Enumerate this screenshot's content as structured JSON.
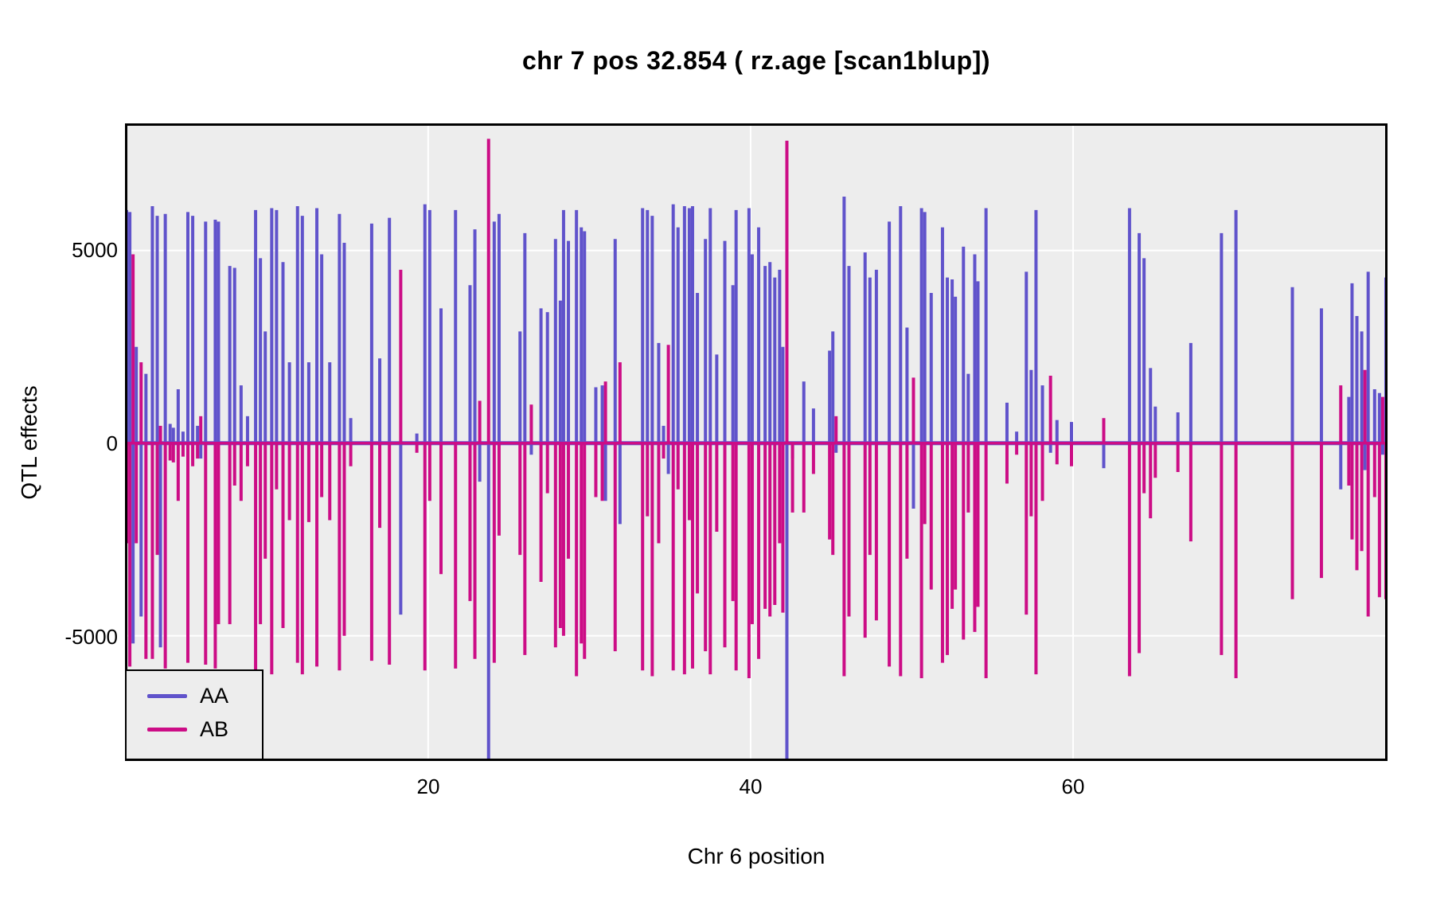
{
  "title": "chr 7 pos 32.854 ( rz.age  [scan1blup])",
  "x_axis": {
    "label": "Chr 6 position",
    "ticks": [
      "20",
      "40",
      "60"
    ]
  },
  "y_axis": {
    "label": "QTL effects",
    "ticks": [
      "5000",
      "0",
      "-5000"
    ]
  },
  "legend": {
    "items": [
      {
        "label": "AA",
        "color": "#6053CB"
      },
      {
        "label": "AB",
        "color": "#CC0D86"
      }
    ]
  },
  "colors": {
    "aa": "#6053CB",
    "ab": "#CC0D86",
    "plot_bg": "#EDEDED",
    "grid": "#FFFFFF",
    "border": "#000000"
  },
  "chart_data": {
    "type": "line",
    "title": "chr 7 pos 32.854 ( rz.age  [scan1blup])",
    "xlabel": "Chr 6 position",
    "ylabel": "QTL effects",
    "xlim": [
      1.2,
      79.5
    ],
    "ylim": [
      -8250,
      8300
    ],
    "x_ticks": [
      20,
      40,
      60
    ],
    "y_ticks": [
      5000,
      0,
      -5000
    ],
    "grid": true,
    "legend_position": "bottom-left",
    "series_names": [
      "AA",
      "AB"
    ],
    "baseline": 0,
    "points_format": [
      "position_cM",
      "AA_effect",
      "AB_effect"
    ],
    "points": [
      [
        1.3,
        6050,
        -2600
      ],
      [
        1.5,
        6000,
        -5800
      ],
      [
        1.7,
        -5200,
        4900
      ],
      [
        1.9,
        2500,
        -2600
      ],
      [
        2.2,
        -4500,
        2100
      ],
      [
        2.5,
        1800,
        -5600
      ],
      [
        2.9,
        6150,
        -5600
      ],
      [
        3.2,
        5900,
        -2900
      ],
      [
        3.4,
        -5300,
        450
      ],
      [
        3.7,
        5950,
        -5850
      ],
      [
        4.0,
        500,
        -450
      ],
      [
        4.2,
        400,
        -500
      ],
      [
        4.5,
        1400,
        -1500
      ],
      [
        4.8,
        300,
        -350
      ],
      [
        5.1,
        6000,
        -5700
      ],
      [
        5.4,
        5900,
        -600
      ],
      [
        5.7,
        450,
        -400
      ],
      [
        5.9,
        -400,
        700
      ],
      [
        6.2,
        5750,
        -5750
      ],
      [
        6.8,
        5800,
        -5850
      ],
      [
        7.0,
        5750,
        -4700
      ],
      [
        7.7,
        4600,
        -4700
      ],
      [
        8.0,
        4550,
        -1100
      ],
      [
        8.4,
        1500,
        -1500
      ],
      [
        8.8,
        700,
        -600
      ],
      [
        9.3,
        6050,
        -5900
      ],
      [
        9.6,
        4800,
        -4700
      ],
      [
        9.9,
        2900,
        -3000
      ],
      [
        10.3,
        6100,
        -6000
      ],
      [
        10.6,
        6050,
        -1200
      ],
      [
        11.0,
        4700,
        -4800
      ],
      [
        11.4,
        2100,
        -2000
      ],
      [
        11.9,
        6150,
        -5700
      ],
      [
        12.2,
        5900,
        -6000
      ],
      [
        12.6,
        2100,
        -2050
      ],
      [
        13.1,
        6100,
        -5800
      ],
      [
        13.4,
        4900,
        -1400
      ],
      [
        13.9,
        2100,
        -2000
      ],
      [
        14.5,
        5950,
        -5900
      ],
      [
        14.8,
        5200,
        -5000
      ],
      [
        15.2,
        650,
        -600
      ],
      [
        16.5,
        5700,
        -5650
      ],
      [
        17.0,
        2200,
        -2200
      ],
      [
        17.6,
        5850,
        -5750
      ],
      [
        18.3,
        -4450,
        4500
      ],
      [
        19.3,
        250,
        -250
      ],
      [
        19.8,
        6200,
        -5900
      ],
      [
        20.1,
        6050,
        -1500
      ],
      [
        20.8,
        3500,
        -3400
      ],
      [
        21.7,
        6050,
        -5850
      ],
      [
        22.6,
        4100,
        -4100
      ],
      [
        22.9,
        5550,
        -5600
      ],
      [
        23.2,
        -1000,
        1100
      ],
      [
        23.75,
        -8200,
        7900
      ],
      [
        24.1,
        5750,
        -5700
      ],
      [
        24.4,
        5950,
        -2400
      ],
      [
        25.7,
        2900,
        -2900
      ],
      [
        26.0,
        5450,
        -5500
      ],
      [
        26.4,
        -300,
        1000
      ],
      [
        27.0,
        3500,
        -3600
      ],
      [
        27.4,
        3400,
        -1300
      ],
      [
        27.9,
        5300,
        -5300
      ],
      [
        28.2,
        3700,
        -4800
      ],
      [
        28.4,
        6050,
        -5000
      ],
      [
        28.7,
        5250,
        -3000
      ],
      [
        29.2,
        6050,
        -6050
      ],
      [
        29.5,
        5600,
        -5200
      ],
      [
        29.7,
        5500,
        -5600
      ],
      [
        30.4,
        1450,
        -1400
      ],
      [
        30.8,
        1500,
        -1500
      ],
      [
        31.0,
        -1500,
        1600
      ],
      [
        31.6,
        5300,
        -5400
      ],
      [
        31.9,
        -2100,
        2100
      ],
      [
        33.3,
        6100,
        -5900
      ],
      [
        33.6,
        6050,
        -1900
      ],
      [
        33.9,
        5900,
        -6050
      ],
      [
        34.3,
        2600,
        -2600
      ],
      [
        34.6,
        450,
        -400
      ],
      [
        34.9,
        -800,
        2550
      ],
      [
        35.2,
        6200,
        -5900
      ],
      [
        35.5,
        5600,
        -1200
      ],
      [
        35.9,
        6150,
        -6000
      ],
      [
        36.2,
        6100,
        -2000
      ],
      [
        36.4,
        6150,
        -5850
      ],
      [
        36.7,
        3900,
        -3900
      ],
      [
        37.2,
        5300,
        -5400
      ],
      [
        37.5,
        6100,
        -6000
      ],
      [
        37.9,
        2300,
        -2300
      ],
      [
        38.4,
        5250,
        -5300
      ],
      [
        38.9,
        4100,
        -4100
      ],
      [
        39.1,
        6050,
        -5900
      ],
      [
        39.9,
        6100,
        -6100
      ],
      [
        40.1,
        4900,
        -4700
      ],
      [
        40.5,
        5600,
        -5600
      ],
      [
        40.9,
        4600,
        -4300
      ],
      [
        41.2,
        4700,
        -4500
      ],
      [
        41.5,
        4300,
        -4200
      ],
      [
        41.8,
        4500,
        -2600
      ],
      [
        42.0,
        2500,
        -4400
      ],
      [
        42.25,
        -8200,
        7850
      ],
      [
        42.6,
        -400,
        -1800
      ],
      [
        43.3,
        1600,
        -1800
      ],
      [
        43.9,
        900,
        -800
      ],
      [
        44.9,
        2400,
        -2500
      ],
      [
        45.1,
        2900,
        -2900
      ],
      [
        45.3,
        -250,
        700
      ],
      [
        45.8,
        6400,
        -6050
      ],
      [
        46.1,
        4600,
        -4500
      ],
      [
        47.1,
        4950,
        -5050
      ],
      [
        47.4,
        4300,
        -2900
      ],
      [
        47.8,
        4500,
        -4600
      ],
      [
        48.6,
        5750,
        -5800
      ],
      [
        49.3,
        6150,
        -6050
      ],
      [
        49.7,
        3000,
        -3000
      ],
      [
        50.1,
        -1700,
        1700
      ],
      [
        50.6,
        6100,
        -6100
      ],
      [
        50.8,
        6000,
        -2100
      ],
      [
        51.2,
        3900,
        -3800
      ],
      [
        51.9,
        5600,
        -5700
      ],
      [
        52.2,
        4300,
        -5500
      ],
      [
        52.5,
        4250,
        -4300
      ],
      [
        52.7,
        3800,
        -3800
      ],
      [
        53.2,
        5100,
        -5100
      ],
      [
        53.5,
        1800,
        -1800
      ],
      [
        53.9,
        4900,
        -4900
      ],
      [
        54.1,
        4200,
        -4250
      ],
      [
        54.6,
        6100,
        -6100
      ],
      [
        55.9,
        1050,
        -1050
      ],
      [
        56.5,
        300,
        -300
      ],
      [
        57.1,
        4450,
        -4450
      ],
      [
        57.4,
        1900,
        -1900
      ],
      [
        57.7,
        6050,
        -6000
      ],
      [
        58.1,
        1500,
        -1500
      ],
      [
        58.6,
        -250,
        1750
      ],
      [
        59.0,
        600,
        -550
      ],
      [
        59.9,
        550,
        -600
      ],
      [
        61.9,
        -650,
        650
      ],
      [
        63.5,
        6100,
        -6050
      ],
      [
        64.1,
        5450,
        -5450
      ],
      [
        64.4,
        4800,
        -1300
      ],
      [
        64.8,
        1950,
        -1950
      ],
      [
        65.1,
        950,
        -900
      ],
      [
        66.5,
        800,
        -750
      ],
      [
        67.3,
        2600,
        -2550
      ],
      [
        69.2,
        5450,
        -5500
      ],
      [
        70.1,
        6050,
        -6100
      ],
      [
        73.6,
        4050,
        -4050
      ],
      [
        75.4,
        3500,
        -3500
      ],
      [
        76.6,
        -1200,
        1500
      ],
      [
        77.1,
        1200,
        -1100
      ],
      [
        77.3,
        4150,
        -2500
      ],
      [
        77.6,
        3300,
        -3300
      ],
      [
        77.9,
        2900,
        -2800
      ],
      [
        78.1,
        -700,
        1900
      ],
      [
        78.3,
        4450,
        -4500
      ],
      [
        78.7,
        1400,
        -1400
      ],
      [
        79.0,
        1300,
        -4000
      ],
      [
        79.2,
        -300,
        1200
      ],
      [
        79.4,
        4300,
        -4050
      ]
    ]
  }
}
